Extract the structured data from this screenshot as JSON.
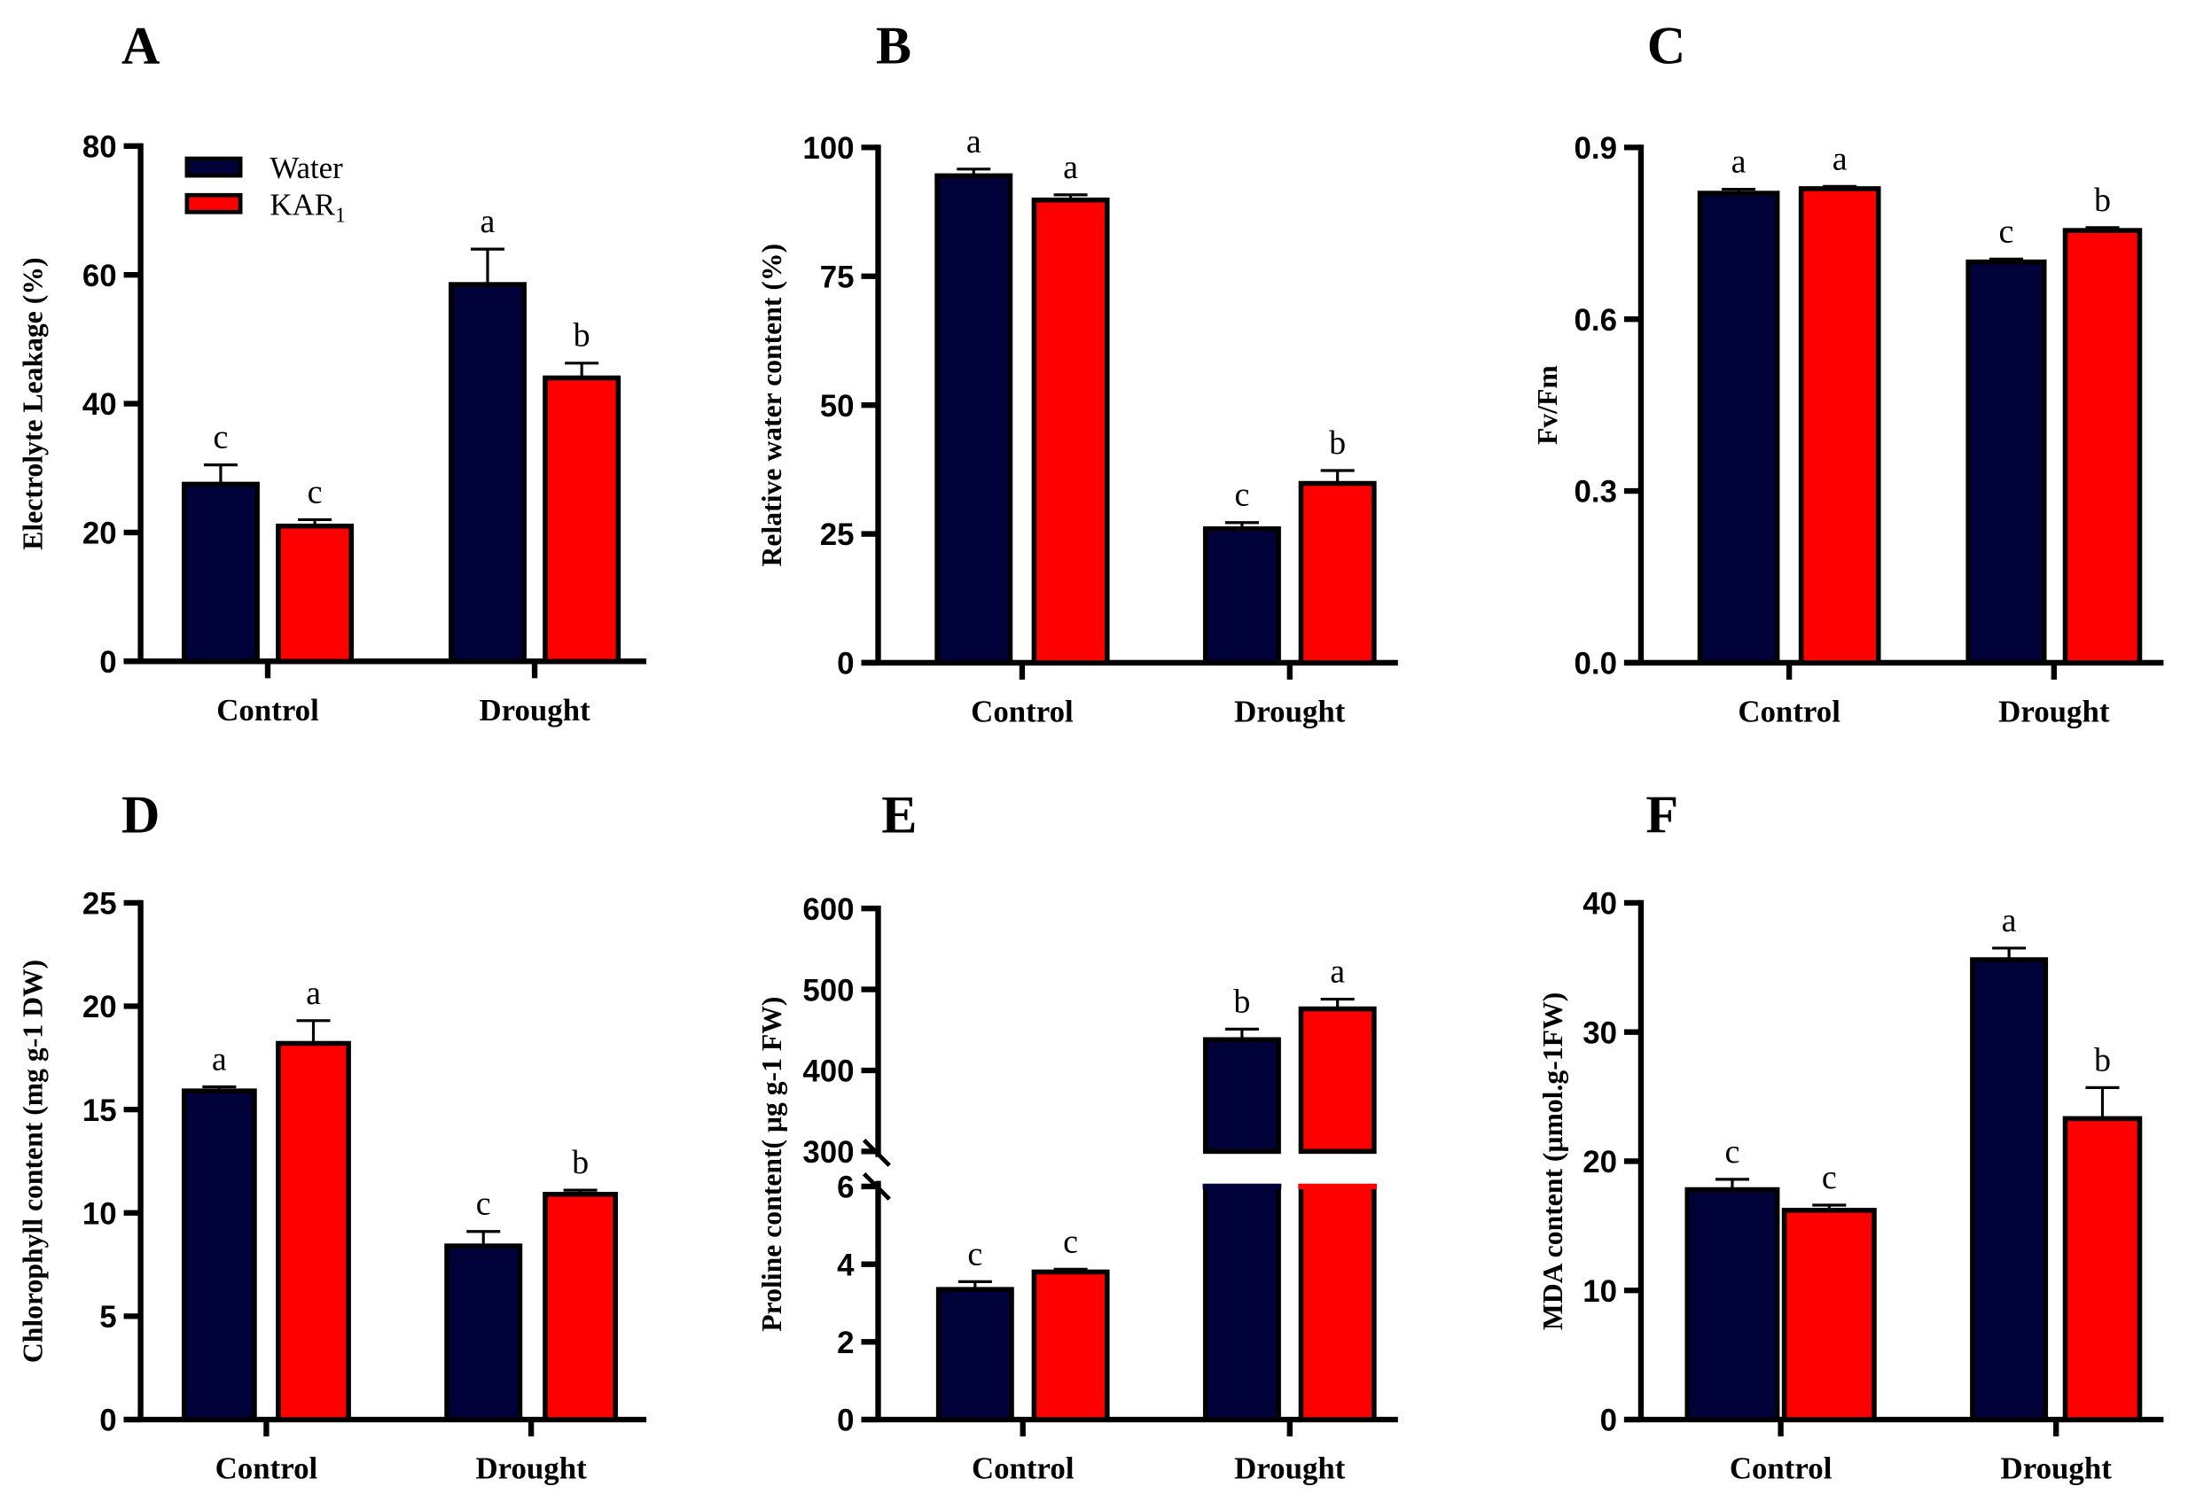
{
  "colors": {
    "water": "#02023a",
    "kar1": "#ff0000"
  },
  "legend": {
    "placement": "top-left of panel A",
    "items": [
      {
        "label": "Water",
        "sub": ""
      },
      {
        "label": "KAR",
        "sub": "1"
      }
    ]
  },
  "chart_data": [
    {
      "type": "bar",
      "panel": "A",
      "ylabel": "Electrolyte Leakage (%)",
      "ylim": [
        0,
        80
      ],
      "yticks": [
        0,
        20,
        40,
        60,
        80
      ],
      "categories": [
        "Control",
        "Drought"
      ],
      "series": [
        {
          "name": "Water",
          "values": [
            27.5,
            58.5
          ],
          "errors": [
            3,
            5.5
          ],
          "letters": [
            "c",
            "a"
          ]
        },
        {
          "name": "KAR1",
          "values": [
            21,
            44
          ],
          "errors": [
            1,
            2.3
          ],
          "letters": [
            "c",
            "b"
          ]
        }
      ]
    },
    {
      "type": "bar",
      "panel": "B",
      "ylabel": "Relative water content  (%)",
      "ylim": [
        0,
        100
      ],
      "yticks": [
        0,
        25,
        50,
        75,
        100
      ],
      "categories": [
        "Control",
        "Drought"
      ],
      "series": [
        {
          "name": "Water",
          "values": [
            94.5,
            26
          ],
          "errors": [
            1.3,
            1.2
          ],
          "letters": [
            "a",
            "c"
          ]
        },
        {
          "name": "KAR1",
          "values": [
            89.8,
            34.8
          ],
          "errors": [
            1,
            2.5
          ],
          "letters": [
            "a",
            "b"
          ]
        }
      ]
    },
    {
      "type": "bar",
      "panel": "C",
      "ylabel": "Fv/Fm",
      "ylim": [
        0,
        0.9
      ],
      "yticks": [
        "0.0",
        "0.3",
        "0.6",
        "0.9"
      ],
      "categories": [
        "Control",
        "Drought"
      ],
      "series": [
        {
          "name": "Water",
          "values": [
            0.82,
            0.7
          ],
          "errors": [
            0.007,
            0.005
          ],
          "letters": [
            "a",
            "c"
          ]
        },
        {
          "name": "KAR1",
          "values": [
            0.828,
            0.755
          ],
          "errors": [
            0.004,
            0.005
          ],
          "letters": [
            "a",
            "b"
          ]
        }
      ]
    },
    {
      "type": "bar",
      "panel": "D",
      "ylabel": "Chlorophyll content (mg g-1 DW)",
      "ylim": [
        0,
        25
      ],
      "yticks": [
        0,
        5,
        10,
        15,
        20,
        25
      ],
      "categories": [
        "Control",
        "Drought"
      ],
      "series": [
        {
          "name": "Water",
          "values": [
            15.9,
            8.4
          ],
          "errors": [
            0.2,
            0.7
          ],
          "letters": [
            "a",
            "c"
          ]
        },
        {
          "name": "KAR1",
          "values": [
            18.2,
            10.9
          ],
          "errors": [
            1.1,
            0.2
          ],
          "letters": [
            "a",
            "b"
          ]
        }
      ]
    },
    {
      "type": "bar",
      "panel": "E",
      "ylabel": "Proline content( μg g-1 FW)",
      "ylim": [
        0,
        600
      ],
      "axis_break": [
        6,
        300
      ],
      "yticks": [
        0,
        2,
        4,
        6,
        300,
        400,
        500,
        600
      ],
      "categories": [
        "Control",
        "Drought"
      ],
      "series": [
        {
          "name": "Water",
          "values": [
            3.35,
            438
          ],
          "errors": [
            0.2,
            13
          ],
          "letters": [
            "c",
            "b"
          ]
        },
        {
          "name": "KAR1",
          "values": [
            3.8,
            476
          ],
          "errors": [
            0.07,
            12
          ],
          "letters": [
            "c",
            "a"
          ]
        }
      ]
    },
    {
      "type": "bar",
      "panel": "F",
      "ylabel": "MDA content (μmol.g-1FW)",
      "ylim": [
        0,
        40
      ],
      "yticks": [
        0,
        10,
        20,
        30,
        40
      ],
      "categories": [
        "Control",
        "Drought"
      ],
      "series": [
        {
          "name": "Water",
          "values": [
            17.8,
            35.6
          ],
          "errors": [
            0.8,
            0.9
          ],
          "letters": [
            "c",
            "a"
          ]
        },
        {
          "name": "KAR1",
          "values": [
            16.2,
            23.3
          ],
          "errors": [
            0.4,
            2.4
          ],
          "letters": [
            "c",
            "b"
          ]
        }
      ]
    }
  ]
}
